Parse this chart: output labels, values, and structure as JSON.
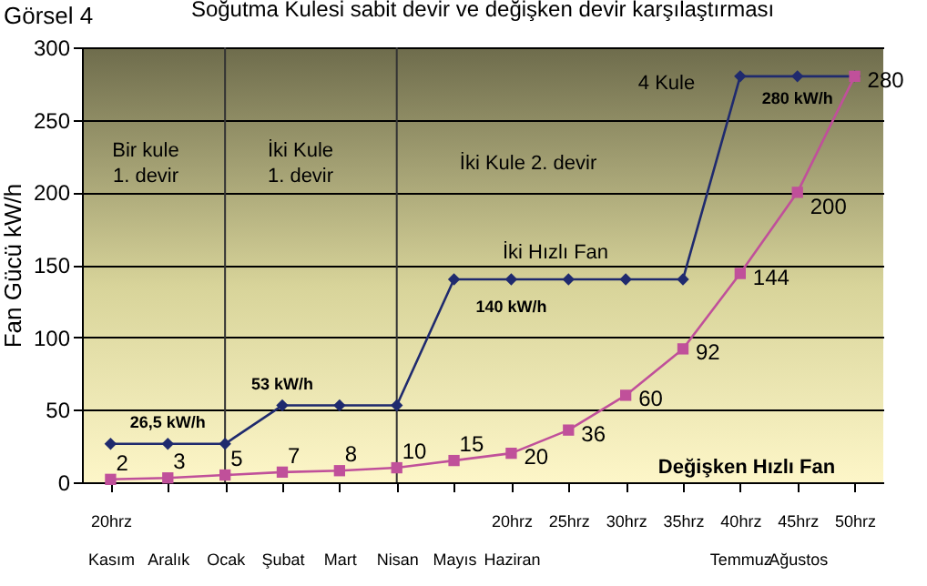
{
  "chart_data": {
    "type": "line",
    "title": "Soğutma  Kulesi  sabit devir ve değişken devir karşılaştırması",
    "ylabel": "Fan Gücü kW/h",
    "categories": [
      "20hrz\nKasım",
      "\nAralık",
      "\nOcak",
      "\nŞubat",
      "\nMart",
      "\nNisan",
      "\nMayıs",
      "20hrz\nHaziran",
      "25hrz",
      "30hrz",
      "35hrz",
      "40hrz\nTemmuz",
      "45hrz\nAğustos",
      "50hrz"
    ],
    "series": [
      {
        "name": "İki Hızlı Fan",
        "color": "#1f2a6e",
        "marker": "diamond",
        "values": [
          26.5,
          26.5,
          26.5,
          53,
          53,
          53,
          140,
          140,
          140,
          140,
          140,
          280,
          280,
          280
        ]
      },
      {
        "name": "Değişken Hızlı Fan",
        "color": "#c0509a",
        "marker": "square",
        "values": [
          2,
          3,
          5,
          7,
          8,
          10,
          15,
          20,
          36,
          60,
          92,
          144,
          200,
          280
        ],
        "value_labels": [
          "2",
          "3",
          "5",
          "7",
          "8",
          "10",
          "15",
          "20",
          "36",
          "60",
          "92",
          "144",
          "200",
          "280"
        ]
      }
    ],
    "ylim": [
      0,
      300
    ],
    "yticks": [
      0,
      50,
      100,
      150,
      200,
      250,
      300
    ],
    "grid": "y",
    "ref_lines": [
      {
        "axis": "x",
        "value": "\nOcak",
        "color": "#333333"
      },
      {
        "axis": "x",
        "value": "\nNisan",
        "color": "#333333"
      }
    ],
    "annotations": [
      "Görsel 4",
      "Bir kule\n1. devir",
      "İki Kule\n1. devir",
      "İki Kule 2. devir",
      "4 Kule",
      {
        "text": "280 kW/h",
        "x": "45hrz\nAğustos",
        "y": 280
      },
      {
        "text": "140 kW/h",
        "x": "20hrz\nHaziran",
        "y": 140
      },
      {
        "text": "53 kW/h",
        "x": "\nŞubat",
        "y": 53
      },
      {
        "text": "26,5 kW/h",
        "x": "\nAralık",
        "y": 26.5
      }
    ]
  }
}
